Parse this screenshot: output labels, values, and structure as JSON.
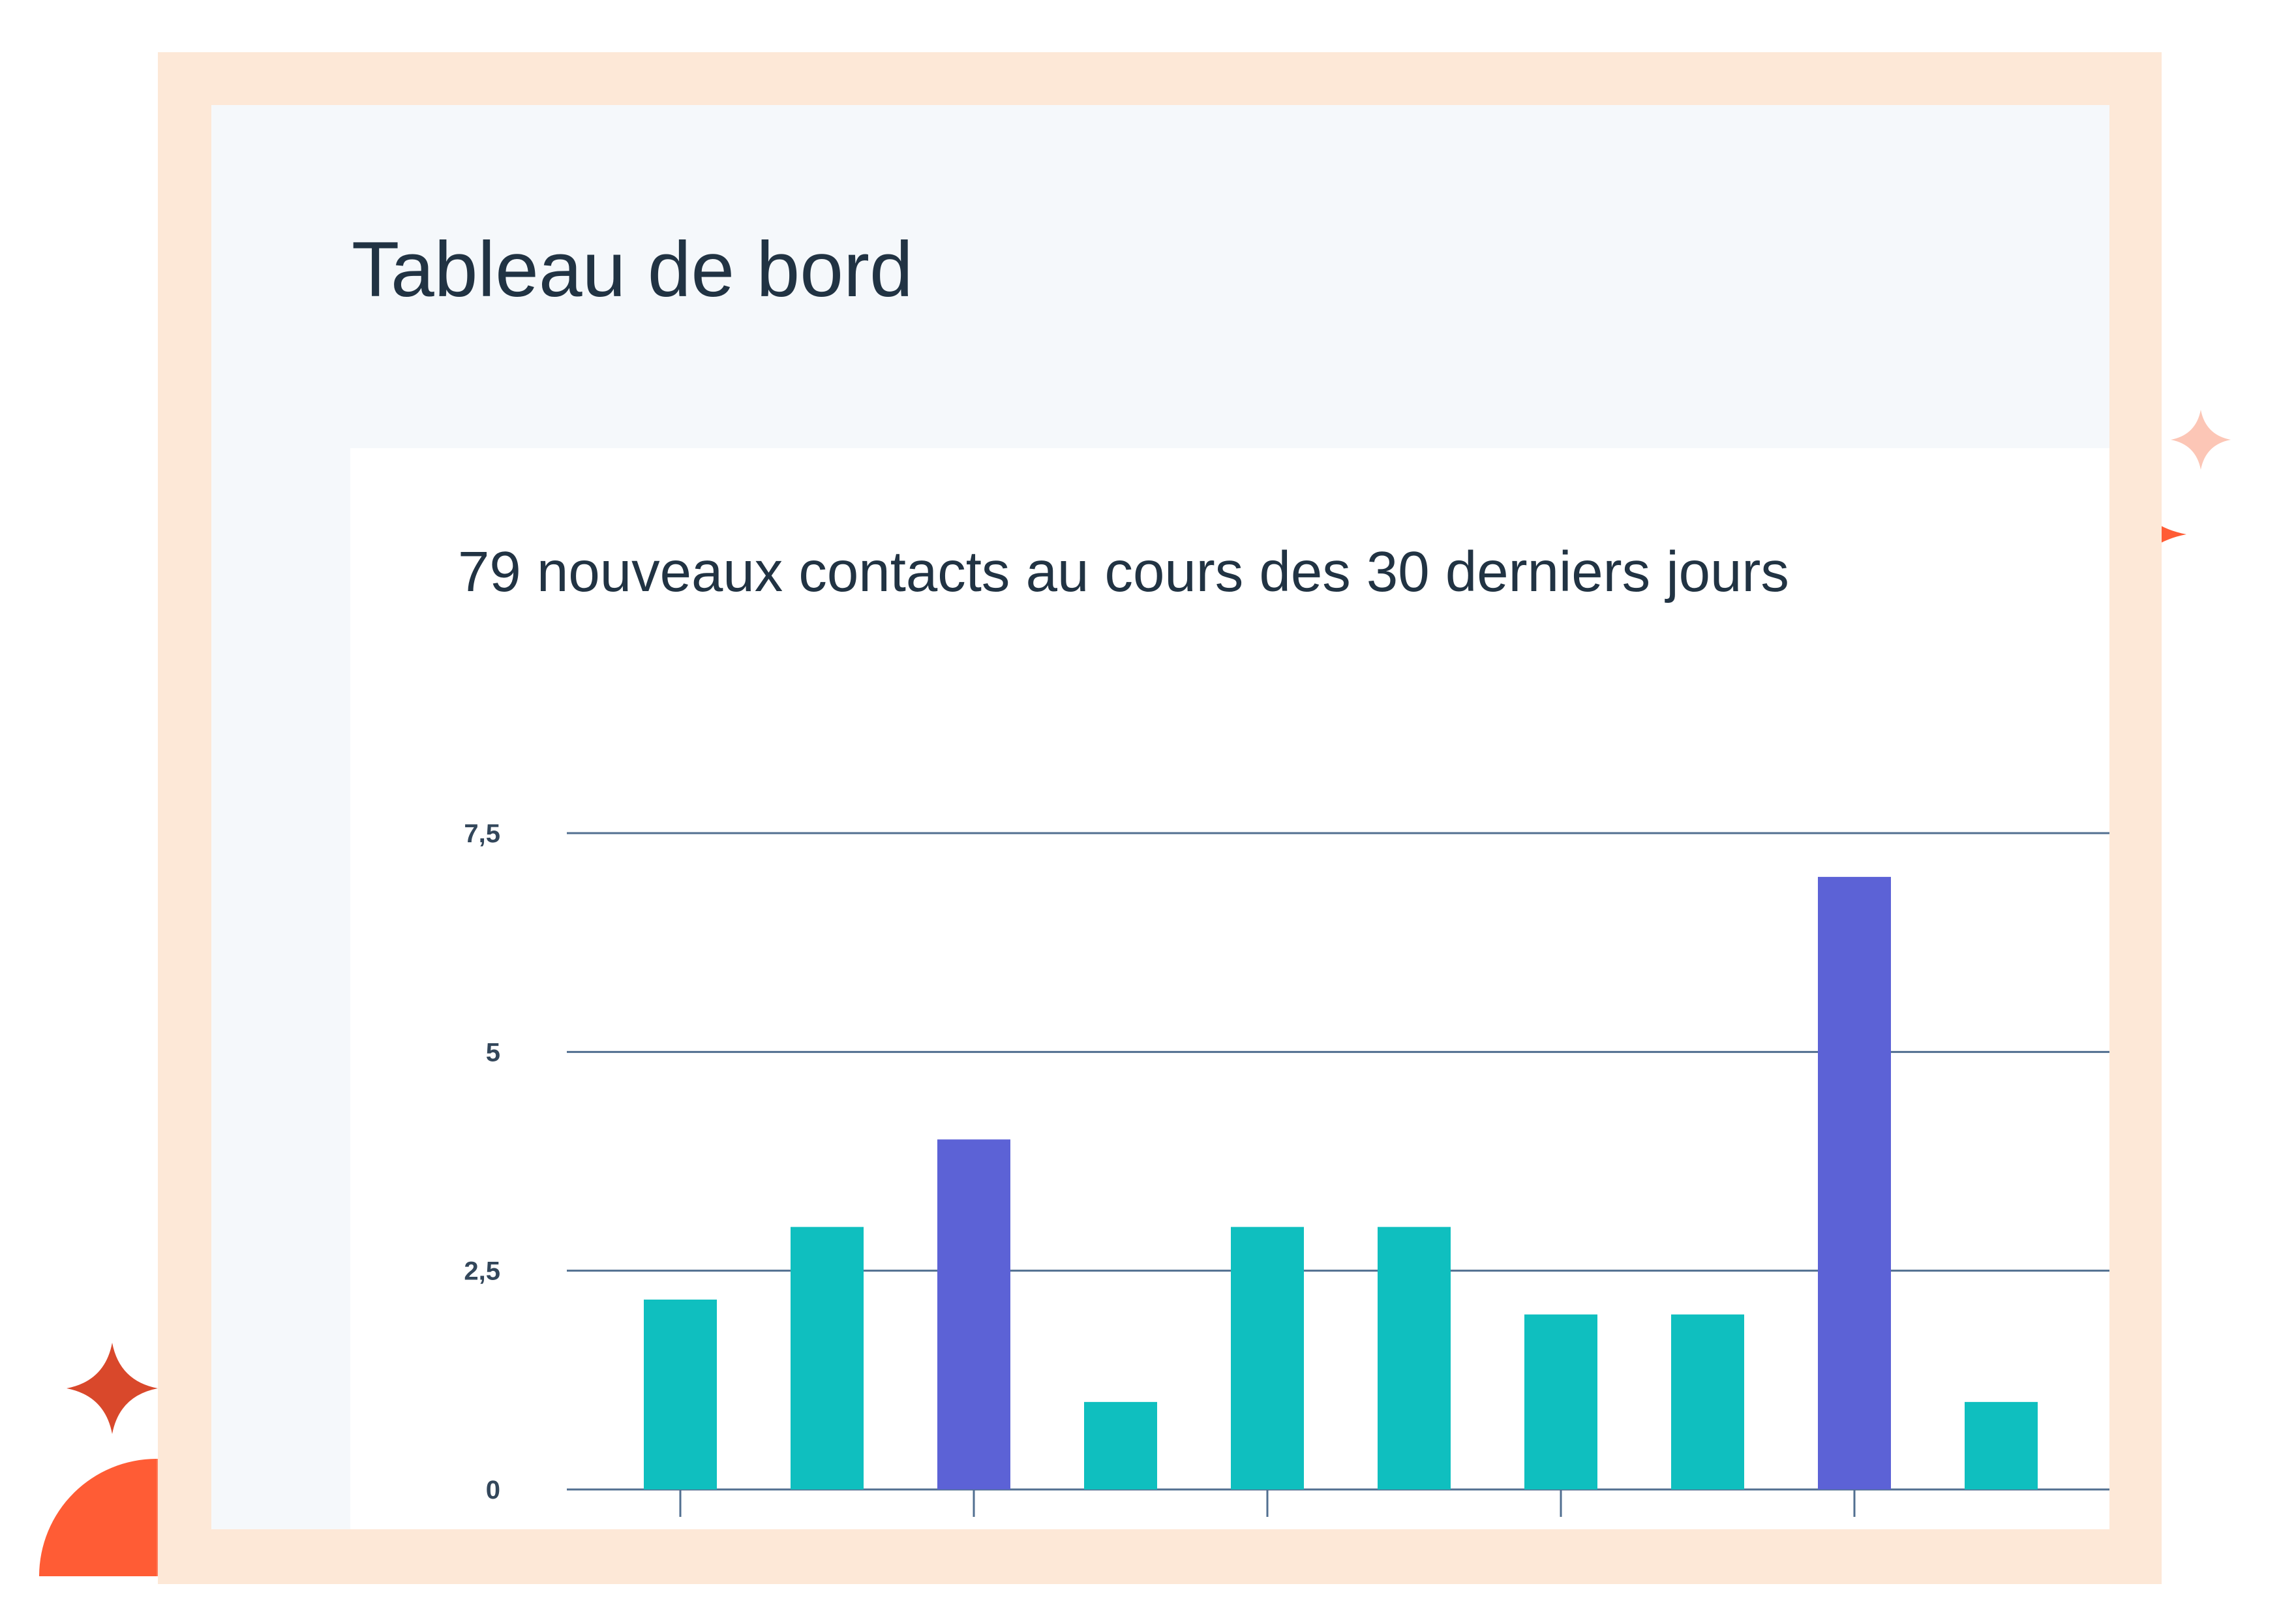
{
  "dashboard": {
    "title": "Tableau de bord"
  },
  "card": {
    "title": "79 nouveaux contacts au cours des 30 derniers jours"
  },
  "colors": {
    "bar_default": "#0fbfbf",
    "bar_highlight": "#5c62d6",
    "frame": "#fde8d7",
    "panel_background": "#f5f8fb",
    "gridline": "#516f90",
    "placeholder_label": "#b6c7d6",
    "sparkle": "#ff5c35"
  },
  "chart_data": {
    "type": "bar",
    "title": "79 nouveaux contacts au cours des 30 derniers jours",
    "xlabel": "",
    "ylabel": "",
    "ylim": [
      0,
      7.5
    ],
    "y_ticks": [
      "0",
      "2,5",
      "5",
      "7,5"
    ],
    "y_tick_values": [
      0,
      2.5,
      5,
      7.5
    ],
    "grid": true,
    "legend": "none",
    "x_tick_labels": "placeholder bars (no text)",
    "x_ticks_at_every_other_bar": true,
    "values": [
      2.17,
      3,
      4,
      1,
      3,
      3,
      2,
      2,
      7,
      1
    ],
    "highlighted": [
      false,
      false,
      true,
      false,
      false,
      false,
      false,
      false,
      true,
      false
    ]
  }
}
